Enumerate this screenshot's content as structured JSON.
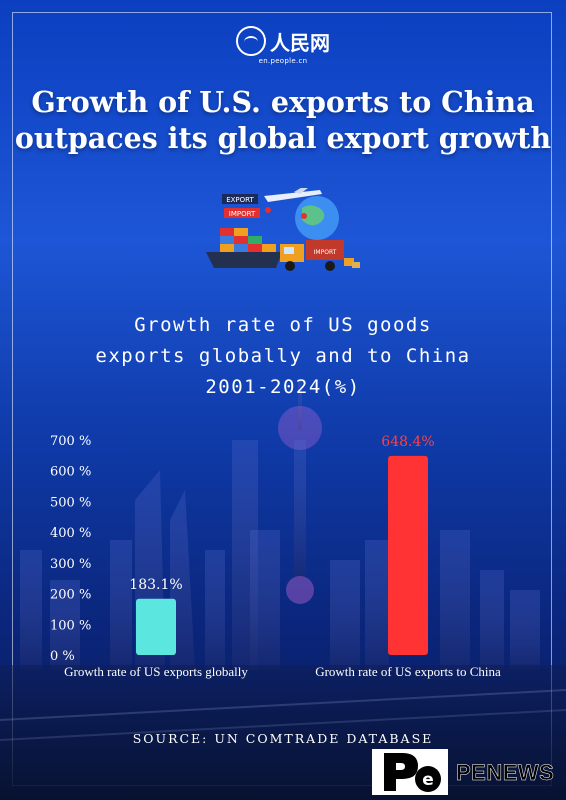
{
  "header": {
    "logo_name": "人民网",
    "logo_url": "en.people.cn"
  },
  "title": "Growth of U.S. exports to China\noutpaces its global export growth",
  "illustration": {
    "tag_export": "EXPORT",
    "tag_import": "IMPORT",
    "container_label": "IMPORT"
  },
  "chart_data": {
    "type": "bar",
    "title": "Growth rate of US goods\nexports globally and to China\n2001-2024(%)",
    "categories": [
      "Growth rate of US exports globally",
      "Growth rate of US exports to China"
    ],
    "values": [
      183.1,
      648.4
    ],
    "value_labels": [
      "183.1%",
      "648.4%"
    ],
    "colors": [
      "#5ce6e0",
      "#ff3333"
    ],
    "label_colors": [
      "#ffffff",
      "#ff4040"
    ],
    "yticks": [
      "0 %",
      "100 %",
      "200 %",
      "300 %",
      "400 %",
      "500 %",
      "600 %",
      "700 %"
    ],
    "ylim": [
      0,
      700
    ],
    "xlabel": "",
    "ylabel": "",
    "grid": false
  },
  "source": "SOURCE: UN COMTRADE DATABASE",
  "brand": {
    "name": "PENEWS",
    "icon": "pe-logo-icon"
  }
}
